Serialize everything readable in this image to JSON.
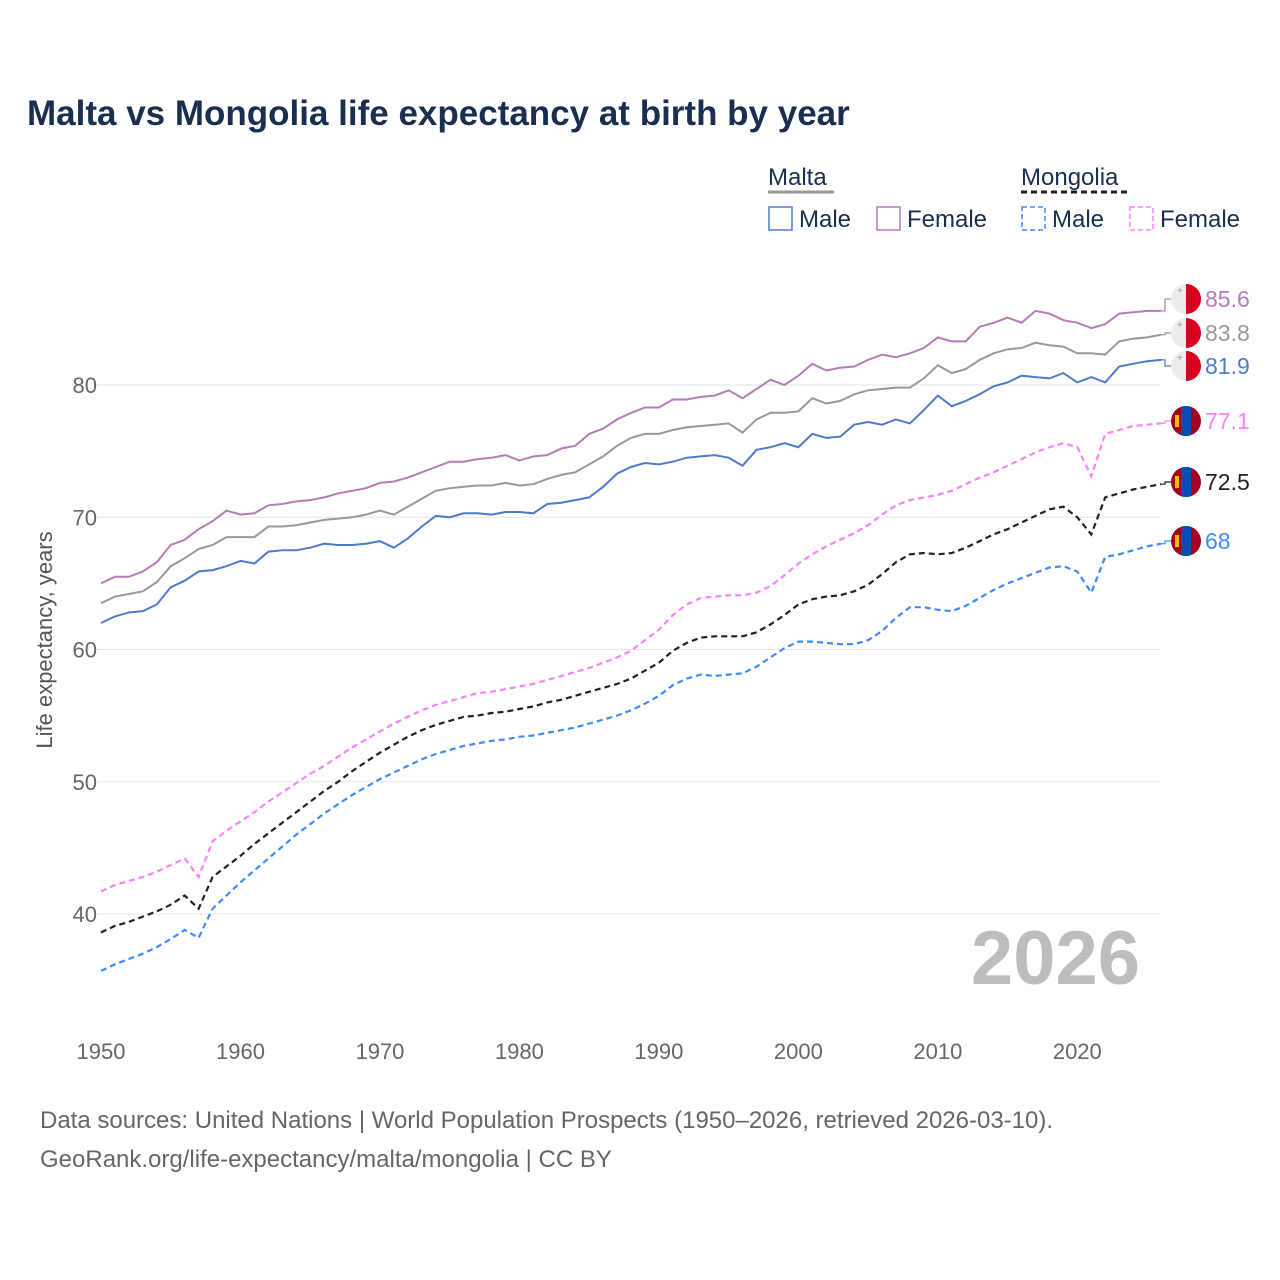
{
  "title": "Malta vs Mongolia life expectancy at birth by year",
  "watermark_year": "2026",
  "footer": {
    "line1": "Data sources: United Nations | World Population Prospects (1950–2026, retrieved 2026-03-10).",
    "line2": "GeoRank.org/life-expectancy/malta/mongolia | CC BY"
  },
  "legend": {
    "groups": [
      {
        "name": "Malta",
        "style": "solid",
        "overall_color": "#999999",
        "items": [
          {
            "label": "Male",
            "color": "#4f7bcc"
          },
          {
            "label": "Female",
            "color": "#b87ab8"
          }
        ]
      },
      {
        "name": "Mongolia",
        "style": "dashed",
        "overall_color": "#222222",
        "items": [
          {
            "label": "Male",
            "color": "#3b8cff"
          },
          {
            "label": "Female",
            "color": "#ff80ff"
          }
        ]
      }
    ]
  },
  "chart_data": {
    "type": "line",
    "title": "Malta vs Mongolia life expectancy at birth by year",
    "xlabel": "",
    "ylabel": "Life expectancy, years",
    "xlim": [
      1950,
      2026
    ],
    "ylim": [
      32,
      88
    ],
    "xticks": [
      "1950",
      "1960",
      "1970",
      "1980",
      "1990",
      "2000",
      "2010",
      "2020"
    ],
    "yticks": [
      "40",
      "50",
      "60",
      "70",
      "80"
    ],
    "grid": true,
    "legend_position": "top-right",
    "x_start": 1950,
    "series": [
      {
        "name": "Malta Female",
        "country": "Malta",
        "color": "#b87ab8",
        "dash": false,
        "end_label": "85.6",
        "flag": "malta",
        "values": [
          65.0,
          65.5,
          65.5,
          65.9,
          66.6,
          67.9,
          68.3,
          69.1,
          69.7,
          70.5,
          70.2,
          70.3,
          70.9,
          71.0,
          71.2,
          71.3,
          71.5,
          71.8,
          72.0,
          72.2,
          72.6,
          72.7,
          73.0,
          73.4,
          73.8,
          74.2,
          74.2,
          74.4,
          74.5,
          74.7,
          74.3,
          74.6,
          74.7,
          75.2,
          75.4,
          76.3,
          76.7,
          77.4,
          77.9,
          78.3,
          78.3,
          78.9,
          78.9,
          79.1,
          79.2,
          79.6,
          79.0,
          79.7,
          80.4,
          80.0,
          80.7,
          81.6,
          81.1,
          81.3,
          81.4,
          81.9,
          82.3,
          82.1,
          82.4,
          82.8,
          83.6,
          83.3,
          83.3,
          84.4,
          84.7,
          85.1,
          84.7,
          85.6,
          85.4,
          84.9,
          84.7,
          84.3,
          84.6,
          85.4,
          85.5,
          85.6,
          85.6
        ]
      },
      {
        "name": "Malta",
        "country": "Malta",
        "color": "#999999",
        "dash": false,
        "end_label": "83.8",
        "flag": "malta",
        "values": [
          63.5,
          64.0,
          64.2,
          64.4,
          65.1,
          66.3,
          66.9,
          67.6,
          67.9,
          68.5,
          68.5,
          68.5,
          69.3,
          69.3,
          69.4,
          69.6,
          69.8,
          69.9,
          70.0,
          70.2,
          70.5,
          70.2,
          70.8,
          71.4,
          72.0,
          72.2,
          72.3,
          72.4,
          72.4,
          72.6,
          72.4,
          72.5,
          72.9,
          73.2,
          73.4,
          74.0,
          74.6,
          75.4,
          76.0,
          76.3,
          76.3,
          76.6,
          76.8,
          76.9,
          77.0,
          77.1,
          76.4,
          77.4,
          77.9,
          77.9,
          78.0,
          79.0,
          78.6,
          78.8,
          79.3,
          79.6,
          79.7,
          79.8,
          79.8,
          80.5,
          81.5,
          80.9,
          81.2,
          81.9,
          82.4,
          82.7,
          82.8,
          83.2,
          83.0,
          82.9,
          82.4,
          82.4,
          82.3,
          83.3,
          83.5,
          83.6,
          83.8
        ]
      },
      {
        "name": "Malta Male",
        "country": "Malta",
        "color": "#4f7bcc",
        "dash": false,
        "end_label": "81.9",
        "flag": "malta",
        "values": [
          62.0,
          62.5,
          62.8,
          62.9,
          63.4,
          64.7,
          65.2,
          65.9,
          66.0,
          66.3,
          66.7,
          66.5,
          67.4,
          67.5,
          67.5,
          67.7,
          68.0,
          67.9,
          67.9,
          68.0,
          68.2,
          67.7,
          68.4,
          69.3,
          70.1,
          70.0,
          70.3,
          70.3,
          70.2,
          70.4,
          70.4,
          70.3,
          71.0,
          71.1,
          71.3,
          71.5,
          72.3,
          73.3,
          73.8,
          74.1,
          74.0,
          74.2,
          74.5,
          74.6,
          74.7,
          74.5,
          73.9,
          75.1,
          75.3,
          75.6,
          75.3,
          76.3,
          76.0,
          76.1,
          77.0,
          77.2,
          77.0,
          77.4,
          77.1,
          78.1,
          79.2,
          78.4,
          78.8,
          79.3,
          79.9,
          80.2,
          80.7,
          80.6,
          80.5,
          80.9,
          80.2,
          80.6,
          80.2,
          81.4,
          81.6,
          81.8,
          81.9
        ]
      },
      {
        "name": "Mongolia Female",
        "country": "Mongolia",
        "color": "#ff80ff",
        "dash": true,
        "end_label": "77.1",
        "flag": "mongolia",
        "values": [
          41.7,
          42.2,
          42.5,
          42.8,
          43.2,
          43.7,
          44.2,
          42.8,
          45.5,
          46.3,
          47.0,
          47.7,
          48.5,
          49.2,
          49.9,
          50.6,
          51.2,
          51.9,
          52.6,
          53.2,
          53.8,
          54.4,
          54.9,
          55.4,
          55.8,
          56.1,
          56.4,
          56.7,
          56.8,
          57.0,
          57.2,
          57.4,
          57.7,
          58.0,
          58.3,
          58.6,
          59.0,
          59.4,
          59.9,
          60.7,
          61.5,
          62.6,
          63.4,
          63.9,
          64.0,
          64.1,
          64.1,
          64.3,
          64.8,
          65.6,
          66.5,
          67.2,
          67.8,
          68.3,
          68.8,
          69.4,
          70.2,
          70.9,
          71.3,
          71.5,
          71.7,
          72.0,
          72.5,
          73.0,
          73.4,
          73.9,
          74.4,
          74.9,
          75.3,
          75.6,
          75.3,
          73.1,
          76.3,
          76.6,
          76.9,
          77.0,
          77.1
        ]
      },
      {
        "name": "Mongolia",
        "country": "Mongolia",
        "color": "#222222",
        "dash": true,
        "end_label": "72.5",
        "flag": "mongolia",
        "values": [
          38.6,
          39.1,
          39.4,
          39.8,
          40.2,
          40.7,
          41.4,
          40.4,
          42.8,
          43.6,
          44.4,
          45.3,
          46.1,
          46.9,
          47.7,
          48.5,
          49.3,
          50.0,
          50.8,
          51.5,
          52.2,
          52.8,
          53.4,
          53.9,
          54.3,
          54.6,
          54.9,
          55.0,
          55.2,
          55.3,
          55.5,
          55.7,
          56.0,
          56.2,
          56.5,
          56.8,
          57.1,
          57.4,
          57.8,
          58.4,
          59.0,
          59.9,
          60.5,
          60.9,
          61.0,
          61.0,
          61.0,
          61.3,
          61.9,
          62.6,
          63.4,
          63.8,
          64.0,
          64.1,
          64.4,
          64.9,
          65.7,
          66.6,
          67.2,
          67.3,
          67.2,
          67.3,
          67.7,
          68.2,
          68.7,
          69.1,
          69.6,
          70.1,
          70.6,
          70.8,
          70.0,
          68.7,
          71.5,
          71.8,
          72.1,
          72.3,
          72.5
        ]
      },
      {
        "name": "Mongolia Male",
        "country": "Mongolia",
        "color": "#3b8cff",
        "dash": true,
        "end_label": "68",
        "flag": "mongolia",
        "values": [
          35.7,
          36.2,
          36.6,
          37.0,
          37.5,
          38.1,
          38.8,
          38.2,
          40.4,
          41.4,
          42.4,
          43.3,
          44.2,
          45.1,
          46.0,
          46.8,
          47.6,
          48.3,
          49.0,
          49.6,
          50.2,
          50.7,
          51.2,
          51.7,
          52.1,
          52.4,
          52.7,
          52.9,
          53.1,
          53.2,
          53.4,
          53.5,
          53.7,
          53.9,
          54.1,
          54.4,
          54.7,
          55.0,
          55.4,
          55.9,
          56.5,
          57.3,
          57.8,
          58.1,
          58.0,
          58.1,
          58.2,
          58.7,
          59.4,
          60.1,
          60.6,
          60.6,
          60.5,
          60.4,
          60.4,
          60.7,
          61.4,
          62.4,
          63.2,
          63.2,
          63.0,
          62.9,
          63.3,
          63.9,
          64.5,
          65.0,
          65.4,
          65.8,
          66.2,
          66.3,
          65.9,
          64.3,
          67.0,
          67.2,
          67.5,
          67.8,
          68.0
        ]
      }
    ]
  }
}
